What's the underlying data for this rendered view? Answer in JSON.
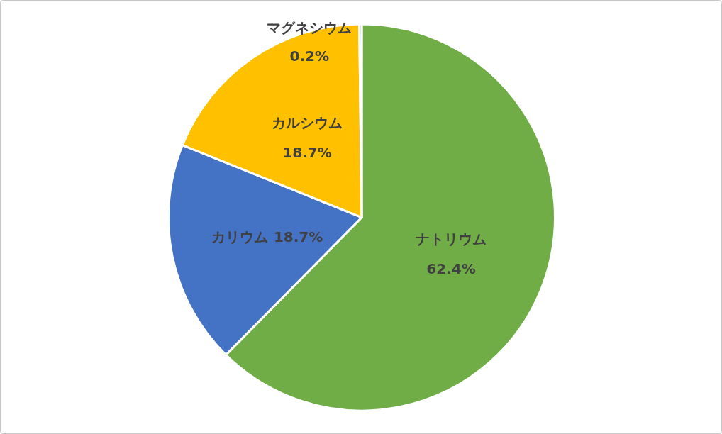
{
  "chart_data": {
    "type": "pie",
    "categories": [
      "ナトリウム",
      "カリウム",
      "カルシウム",
      "マグネシウム"
    ],
    "values": [
      62.4,
      18.7,
      18.7,
      0.2
    ],
    "colors": [
      "#70ad47",
      "#4472c4",
      "#ffc000",
      "#a5a5a5"
    ],
    "value_labels": [
      "62.4%",
      "18.7%",
      "18.7%",
      "0.2%"
    ]
  }
}
